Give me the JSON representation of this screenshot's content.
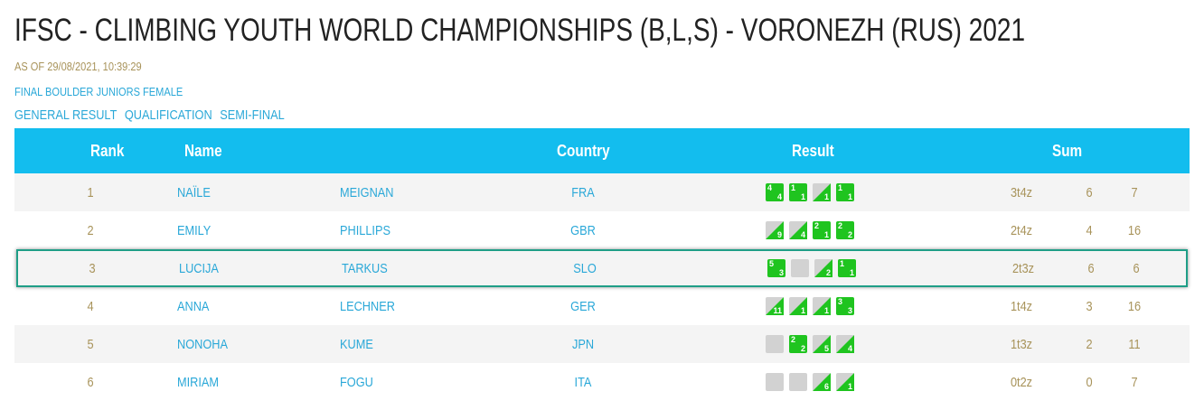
{
  "header": {
    "title": "IFSC - CLIMBING YOUTH WORLD CHAMPIONSHIPS (B,L,S) - VORONEZH (RUS) 2021",
    "as_of": "AS OF 29/08/2021, 10:39:29",
    "event": "FINAL BOULDER JUNIORS FEMALE",
    "tabs": [
      "GENERAL RESULT",
      "QUALIFICATION",
      "SEMI-FINAL"
    ]
  },
  "table": {
    "columns": [
      "Rank",
      "Name",
      "Country",
      "Result",
      "Sum"
    ],
    "rows": [
      {
        "rank": 1,
        "first_name": "NAÏLE",
        "last_name": "MEIGNAN",
        "country": "FRA",
        "results": [
          {
            "top": 4,
            "zone": 4
          },
          {
            "top": 1,
            "zone": 1
          },
          {
            "top": null,
            "zone": 1
          },
          {
            "top": 1,
            "zone": 1
          }
        ],
        "tops_zones": "3t4z",
        "top_attempts": 6,
        "zone_attempts": 7
      },
      {
        "rank": 2,
        "first_name": "EMILY",
        "last_name": "PHILLIPS",
        "country": "GBR",
        "results": [
          {
            "top": null,
            "zone": 9
          },
          {
            "top": null,
            "zone": 4
          },
          {
            "top": 2,
            "zone": 1
          },
          {
            "top": 2,
            "zone": 2
          }
        ],
        "tops_zones": "2t4z",
        "top_attempts": 4,
        "zone_attempts": 16
      },
      {
        "rank": 3,
        "first_name": "LUCIJA",
        "last_name": "TARKUS",
        "country": "SLO",
        "results": [
          {
            "top": 5,
            "zone": 3
          },
          {
            "top": null,
            "zone": null
          },
          {
            "top": null,
            "zone": 2
          },
          {
            "top": 1,
            "zone": 1
          }
        ],
        "tops_zones": "2t3z",
        "top_attempts": 6,
        "zone_attempts": 6
      },
      {
        "rank": 4,
        "first_name": "ANNA",
        "last_name": "LECHNER",
        "country": "GER",
        "results": [
          {
            "top": null,
            "zone": 11
          },
          {
            "top": null,
            "zone": 1
          },
          {
            "top": null,
            "zone": 1
          },
          {
            "top": 3,
            "zone": 3
          }
        ],
        "tops_zones": "1t4z",
        "top_attempts": 3,
        "zone_attempts": 16
      },
      {
        "rank": 5,
        "first_name": "NONOHA",
        "last_name": "KUME",
        "country": "JPN",
        "results": [
          {
            "top": null,
            "zone": null
          },
          {
            "top": 2,
            "zone": 2
          },
          {
            "top": null,
            "zone": 5
          },
          {
            "top": null,
            "zone": 4
          }
        ],
        "tops_zones": "1t3z",
        "top_attempts": 2,
        "zone_attempts": 11
      },
      {
        "rank": 6,
        "first_name": "MIRIAM",
        "last_name": "FOGU",
        "country": "ITA",
        "results": [
          {
            "top": null,
            "zone": null
          },
          {
            "top": null,
            "zone": null
          },
          {
            "top": null,
            "zone": 6
          },
          {
            "top": null,
            "zone": 1
          }
        ],
        "tops_zones": "0t2z",
        "top_attempts": 0,
        "zone_attempts": 7
      }
    ],
    "highlighted_rank": 3
  }
}
